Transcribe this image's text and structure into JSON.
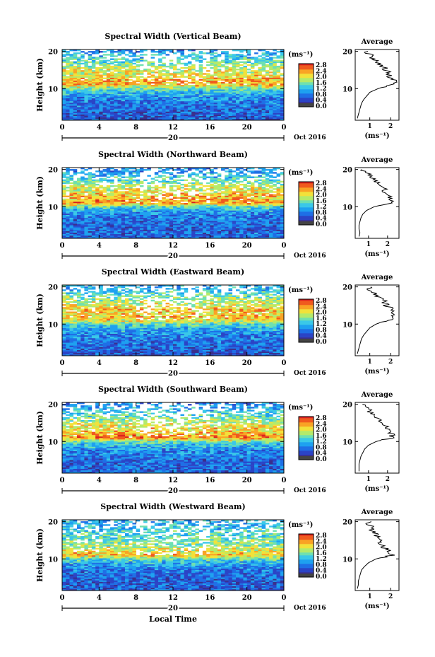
{
  "figure": {
    "xlabel": "Local Time",
    "date_label": "Oct 2016",
    "day_label": "20",
    "unit_label": "(ms⁻¹)",
    "average_title": "Average",
    "average_xlabel": "(ms⁻¹)",
    "colorbar_ticks": [
      "2.8",
      "2.4",
      "2.0",
      "1.6",
      "1.2",
      "0.8",
      "0.4",
      "0.0"
    ],
    "colorscale": [
      "#3a2f8c",
      "#2b44c6",
      "#1f6fe6",
      "#1ea1f0",
      "#3ac8e8",
      "#6fe0b0",
      "#b4ea6a",
      "#f2e13a",
      "#f9a325",
      "#f05a1e",
      "#d91f1f"
    ]
  },
  "chart_data": [
    {
      "type": "heatmap",
      "title": "Spectral Width (Vertical Beam)",
      "xlabel": "Local Time",
      "ylabel": "Height (km)",
      "x_ticks": [
        "0",
        "4",
        "8",
        "12",
        "16",
        "20",
        "0"
      ],
      "y_ticks": [
        "10",
        "20"
      ],
      "xlim": [
        0,
        24
      ],
      "ylim": [
        1.5,
        20.5
      ],
      "colorbar": {
        "label": "(ms⁻¹)",
        "range": [
          0.0,
          2.8
        ]
      },
      "average_profile": {
        "title": "Average",
        "xlabel": "(ms⁻¹)",
        "x_ticks": [
          "1",
          "2"
        ],
        "y_ticks": [
          "10",
          "20"
        ],
        "xlim": [
          0.3,
          2.4
        ],
        "heights": [
          2,
          3,
          4,
          5,
          6,
          7,
          8,
          9,
          10,
          11,
          12,
          13,
          14,
          15,
          16,
          17,
          18,
          19,
          20
        ],
        "values": [
          0.4,
          0.45,
          0.5,
          0.55,
          0.6,
          0.7,
          0.85,
          1.0,
          1.4,
          2.1,
          2.2,
          2.0,
          1.9,
          1.8,
          1.6,
          1.4,
          1.2,
          1.0,
          0.8
        ]
      }
    },
    {
      "type": "heatmap",
      "title": "Spectral Width (Northward Beam)",
      "xlabel": "Local Time",
      "ylabel": "Height (km)",
      "x_ticks": [
        "0",
        "4",
        "8",
        "12",
        "16",
        "20",
        "0"
      ],
      "y_ticks": [
        "10",
        "20"
      ],
      "xlim": [
        0,
        24
      ],
      "ylim": [
        1.5,
        20.5
      ],
      "colorbar": {
        "label": "(ms⁻¹)",
        "range": [
          0.0,
          2.8
        ]
      },
      "average_profile": {
        "title": "Average",
        "xlabel": "(ms⁻¹)",
        "x_ticks": [
          "1",
          "2"
        ],
        "y_ticks": [
          "10",
          "20"
        ],
        "xlim": [
          0.3,
          2.6
        ],
        "heights": [
          2,
          3,
          4,
          5,
          6,
          7,
          8,
          9,
          10,
          11,
          12,
          13,
          14,
          15,
          16,
          17,
          18,
          19,
          20
        ],
        "values": [
          0.5,
          0.55,
          0.5,
          0.5,
          0.55,
          0.6,
          0.7,
          0.9,
          1.3,
          2.3,
          2.2,
          2.1,
          1.9,
          1.8,
          1.6,
          1.3,
          1.1,
          0.9,
          0.7
        ]
      }
    },
    {
      "type": "heatmap",
      "title": "Spectral Width (Eastward Beam)",
      "xlabel": "Local Time",
      "ylabel": "Height (km)",
      "x_ticks": [
        "0",
        "4",
        "8",
        "12",
        "16",
        "20",
        "0"
      ],
      "y_ticks": [
        "10",
        "20"
      ],
      "xlim": [
        0,
        24
      ],
      "ylim": [
        1.5,
        20.5
      ],
      "colorbar": {
        "label": "(ms⁻¹)",
        "range": [
          0.0,
          2.8
        ]
      },
      "average_profile": {
        "title": "Average",
        "xlabel": "(ms⁻¹)",
        "x_ticks": [
          "1",
          "2"
        ],
        "y_ticks": [
          "10",
          "20"
        ],
        "xlim": [
          0.3,
          2.4
        ],
        "heights": [
          2,
          3,
          4,
          5,
          6,
          7,
          8,
          9,
          10,
          11,
          12,
          13,
          14,
          15,
          16,
          17,
          18,
          19,
          20
        ],
        "values": [
          0.4,
          0.45,
          0.5,
          0.55,
          0.6,
          0.7,
          0.85,
          1.0,
          1.3,
          1.9,
          2.1,
          2.0,
          2.1,
          1.8,
          1.7,
          1.5,
          1.3,
          1.1,
          0.9
        ]
      }
    },
    {
      "type": "heatmap",
      "title": "Spectral Width (Southward Beam)",
      "xlabel": "Local Time",
      "ylabel": "Height (km)",
      "x_ticks": [
        "0",
        "4",
        "8",
        "12",
        "16",
        "20",
        "0"
      ],
      "y_ticks": [
        "10",
        "20"
      ],
      "xlim": [
        0,
        24
      ],
      "ylim": [
        1.5,
        20.5
      ],
      "colorbar": {
        "label": "(ms⁻¹)",
        "range": [
          0.0,
          2.8
        ]
      },
      "average_profile": {
        "title": "Average",
        "xlabel": "(ms⁻¹)",
        "x_ticks": [
          "1",
          "2"
        ],
        "y_ticks": [
          "10",
          "20"
        ],
        "xlim": [
          0.3,
          2.6
        ],
        "heights": [
          2,
          3,
          4,
          5,
          6,
          7,
          8,
          9,
          10,
          11,
          12,
          13,
          14,
          15,
          16,
          17,
          18,
          19,
          20
        ],
        "values": [
          0.5,
          0.5,
          0.5,
          0.55,
          0.6,
          0.7,
          0.8,
          1.0,
          1.4,
          2.3,
          2.2,
          2.0,
          1.9,
          1.7,
          1.5,
          1.3,
          1.1,
          0.9,
          0.7
        ]
      }
    },
    {
      "type": "heatmap",
      "title": "Spectral Width (Westward Beam)",
      "xlabel": "Local Time",
      "ylabel": "Height (km)",
      "x_ticks": [
        "0",
        "4",
        "8",
        "12",
        "16",
        "20",
        "0"
      ],
      "y_ticks": [
        "10",
        "20"
      ],
      "xlim": [
        0,
        24
      ],
      "ylim": [
        1.5,
        20.5
      ],
      "colorbar": {
        "label": "(ms⁻¹)",
        "range": [
          0.0,
          2.8
        ]
      },
      "average_profile": {
        "title": "Average",
        "xlabel": "(ms⁻¹)",
        "x_ticks": [
          "1",
          "2"
        ],
        "y_ticks": [
          "10",
          "20"
        ],
        "xlim": [
          0.3,
          2.4
        ],
        "heights": [
          2,
          3,
          4,
          5,
          6,
          7,
          8,
          9,
          10,
          11,
          12,
          13,
          14,
          15,
          16,
          17,
          18,
          19,
          20
        ],
        "values": [
          0.4,
          0.45,
          0.45,
          0.5,
          0.55,
          0.6,
          0.75,
          0.95,
          1.3,
          2.1,
          1.9,
          1.7,
          1.5,
          1.4,
          1.3,
          1.2,
          1.1,
          1.0,
          0.9
        ]
      }
    }
  ]
}
